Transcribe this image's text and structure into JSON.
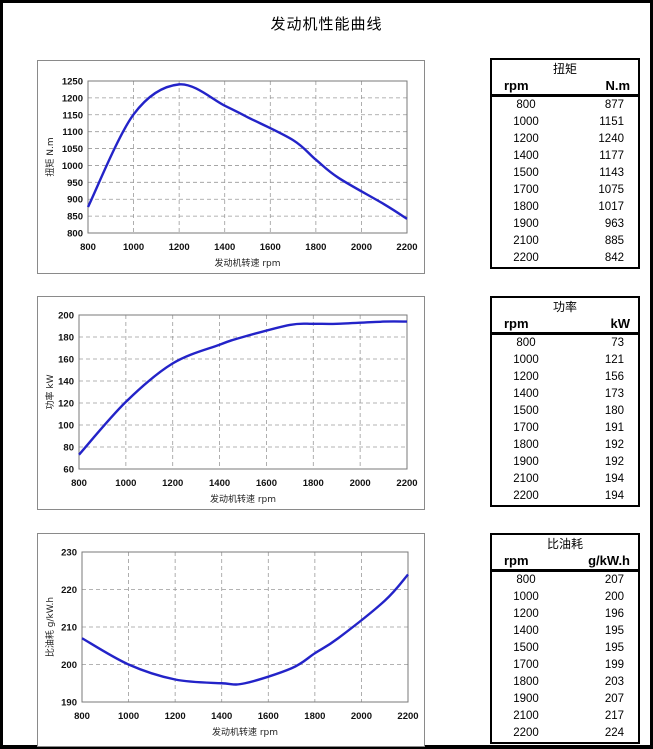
{
  "page": {
    "title": "发动机性能曲线"
  },
  "chart_data": [
    {
      "type": "line",
      "title": "扭矩",
      "xlabel": "发动机转速  rpm",
      "ylabel": "扭矩 N.m",
      "x": [
        800,
        1000,
        1200,
        1400,
        1500,
        1700,
        1800,
        1900,
        2100,
        2200
      ],
      "values": [
        877,
        1151,
        1240,
        1177,
        1143,
        1075,
        1017,
        963,
        885,
        842
      ],
      "xlim": [
        800,
        2200
      ],
      "ylim": [
        800,
        1250
      ],
      "xticks": [
        800,
        1000,
        1200,
        1400,
        1600,
        1800,
        2000,
        2200
      ],
      "yticks": [
        800,
        850,
        900,
        950,
        1000,
        1050,
        1100,
        1150,
        1200,
        1250
      ],
      "grid": true,
      "line_color": "#2323c8"
    },
    {
      "type": "line",
      "title": "功率",
      "xlabel": "发动机转速 rpm",
      "ylabel": "功率  kW",
      "x": [
        800,
        1000,
        1200,
        1400,
        1500,
        1700,
        1800,
        1900,
        2100,
        2200
      ],
      "values": [
        73,
        121,
        156,
        173,
        180,
        191,
        192,
        192,
        194,
        194
      ],
      "xlim": [
        800,
        2200
      ],
      "ylim": [
        60,
        200
      ],
      "xticks": [
        800,
        1000,
        1200,
        1400,
        1600,
        1800,
        2000,
        2200
      ],
      "yticks": [
        60,
        80,
        100,
        120,
        140,
        160,
        180,
        200
      ],
      "grid": true,
      "line_color": "#2323c8"
    },
    {
      "type": "line",
      "title": "比油耗",
      "xlabel": "发动机转速  rpm",
      "ylabel": "比油耗 g/kW.h",
      "x": [
        800,
        1000,
        1200,
        1400,
        1500,
        1700,
        1800,
        1900,
        2100,
        2200
      ],
      "values": [
        207,
        200,
        196,
        195,
        195,
        199,
        203,
        207,
        217,
        224
      ],
      "xlim": [
        800,
        2200
      ],
      "ylim": [
        190,
        230
      ],
      "xticks": [
        800,
        1000,
        1200,
        1400,
        1600,
        1800,
        2000,
        2200
      ],
      "yticks": [
        190,
        200,
        210,
        220,
        230
      ],
      "grid": true,
      "line_color": "#2323c8"
    }
  ],
  "tables": [
    {
      "title": "扭矩",
      "col1": "rpm",
      "col2": "N.m",
      "rows": [
        [
          "800",
          "877"
        ],
        [
          "1000",
          "1151"
        ],
        [
          "1200",
          "1240"
        ],
        [
          "1400",
          "1177"
        ],
        [
          "1500",
          "1143"
        ],
        [
          "1700",
          "1075"
        ],
        [
          "1800",
          "1017"
        ],
        [
          "1900",
          "963"
        ],
        [
          "2100",
          "885"
        ],
        [
          "2200",
          "842"
        ]
      ]
    },
    {
      "title": "功率",
      "col1": "rpm",
      "col2": "kW",
      "rows": [
        [
          "800",
          "73"
        ],
        [
          "1000",
          "121"
        ],
        [
          "1200",
          "156"
        ],
        [
          "1400",
          "173"
        ],
        [
          "1500",
          "180"
        ],
        [
          "1700",
          "191"
        ],
        [
          "1800",
          "192"
        ],
        [
          "1900",
          "192"
        ],
        [
          "2100",
          "194"
        ],
        [
          "2200",
          "194"
        ]
      ]
    },
    {
      "title": "比油耗",
      "col1": "rpm",
      "col2": "g/kW.h",
      "rows": [
        [
          "800",
          "207"
        ],
        [
          "1000",
          "200"
        ],
        [
          "1200",
          "196"
        ],
        [
          "1400",
          "195"
        ],
        [
          "1500",
          "195"
        ],
        [
          "1700",
          "199"
        ],
        [
          "1800",
          "203"
        ],
        [
          "1900",
          "207"
        ],
        [
          "2100",
          "217"
        ],
        [
          "2200",
          "224"
        ]
      ]
    }
  ]
}
